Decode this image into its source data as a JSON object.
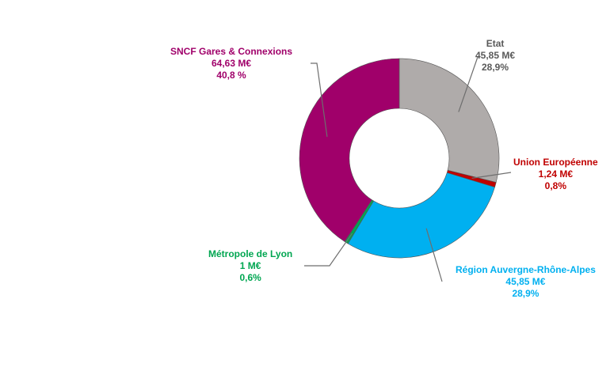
{
  "chart_data": {
    "type": "pie",
    "style": "donut",
    "slices": [
      {
        "name": "Etat",
        "value_label": "45,85 M€",
        "pct_label": "28,9%",
        "value": 45.85,
        "pct": 28.9,
        "color": "#afabaa"
      },
      {
        "name": "Union Européenne",
        "value_label": "1,24 M€",
        "pct_label": "0,8%",
        "value": 1.24,
        "pct": 0.8,
        "color": "#c00000"
      },
      {
        "name": "Région Auvergne-Rhône-Alpes",
        "value_label": "45,85 M€",
        "pct_label": "28,9%",
        "value": 45.85,
        "pct": 28.9,
        "color": "#00b0f0"
      },
      {
        "name": "Métropole de Lyon",
        "value_label": "1 M€",
        "pct_label": "0,6%",
        "value": 1.0,
        "pct": 0.6,
        "color": "#00a651"
      },
      {
        "name": "SNCF Gares & Connexions",
        "value_label": "64,63 M€",
        "pct_label": "40,8 %",
        "value": 64.63,
        "pct": 40.8,
        "color": "#a0006a"
      }
    ],
    "label_colors": {
      "Etat": "#595959",
      "Union Européenne": "#c00000",
      "Région Auvergne-Rhône-Alpes": "#00b0f0",
      "Métropole de Lyon": "#00a651",
      "SNCF Gares & Connexions": "#a0006a"
    }
  }
}
